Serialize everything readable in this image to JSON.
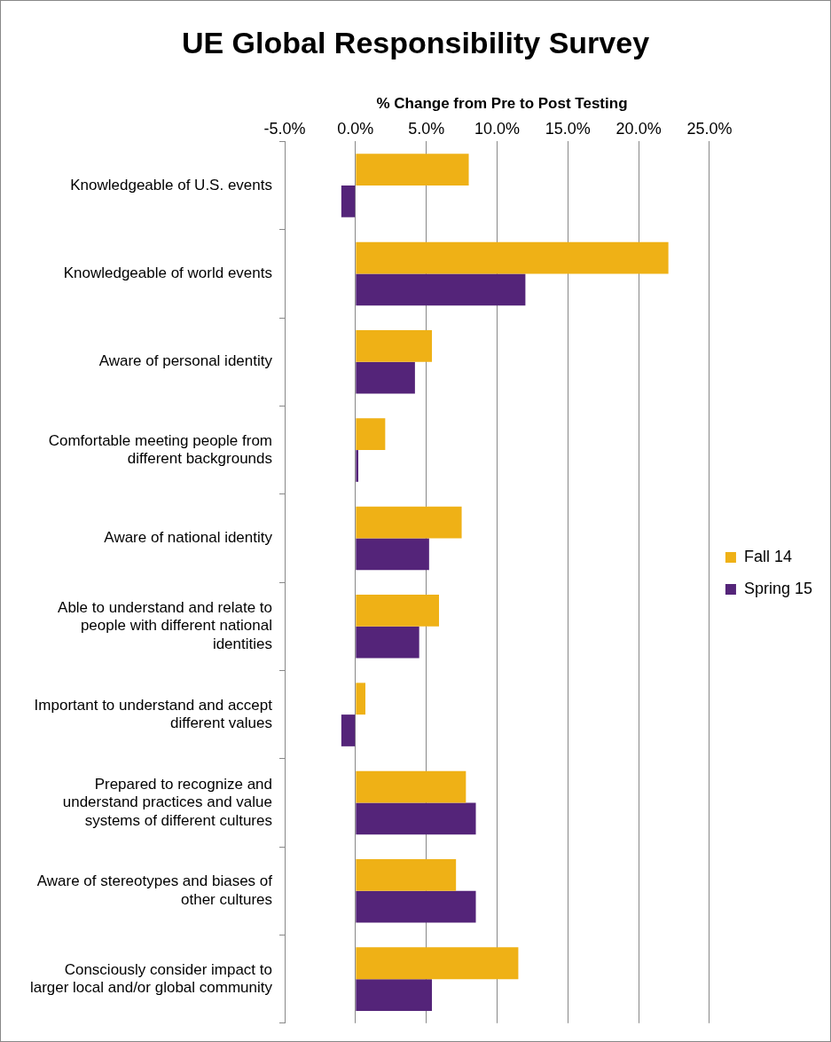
{
  "chart_data": {
    "type": "bar",
    "orientation": "horizontal",
    "title": "UE Global Responsibility Survey",
    "xlabel": "% Change from Pre to Post Testing",
    "categories": [
      "Knowledgeable of U.S. events",
      "Knowledgeable of world events",
      "Aware of personal identity",
      "Comfortable meeting people from different backgrounds",
      "Aware of national identity",
      "Able to understand and relate to people with different national identities",
      "Important to understand and accept different values",
      "Prepared to recognize and understand practices and value systems of different cultures",
      "Aware of stereotypes and biases of other cultures",
      "Consciously consider impact to larger local and/or global community"
    ],
    "series": [
      {
        "name": "Fall 14",
        "color": "#efb116",
        "values": [
          8.0,
          22.1,
          5.4,
          2.1,
          7.5,
          5.9,
          0.7,
          7.8,
          7.1,
          11.5
        ]
      },
      {
        "name": "Spring 15",
        "color": "#542479",
        "values": [
          -1.0,
          12.0,
          4.2,
          0.2,
          5.2,
          4.5,
          -1.0,
          8.5,
          8.5,
          5.4
        ]
      }
    ],
    "xlim": [
      -5,
      25
    ],
    "xticks": [
      {
        "value": -5,
        "label": "-5.0%"
      },
      {
        "value": 0,
        "label": "0.0%"
      },
      {
        "value": 5,
        "label": "5.0%"
      },
      {
        "value": 10,
        "label": "10.0%"
      },
      {
        "value": 15,
        "label": "15.0%"
      },
      {
        "value": 20,
        "label": "20.0%"
      },
      {
        "value": 25,
        "label": "25.0%"
      }
    ],
    "grid": "x",
    "legend": "right"
  }
}
